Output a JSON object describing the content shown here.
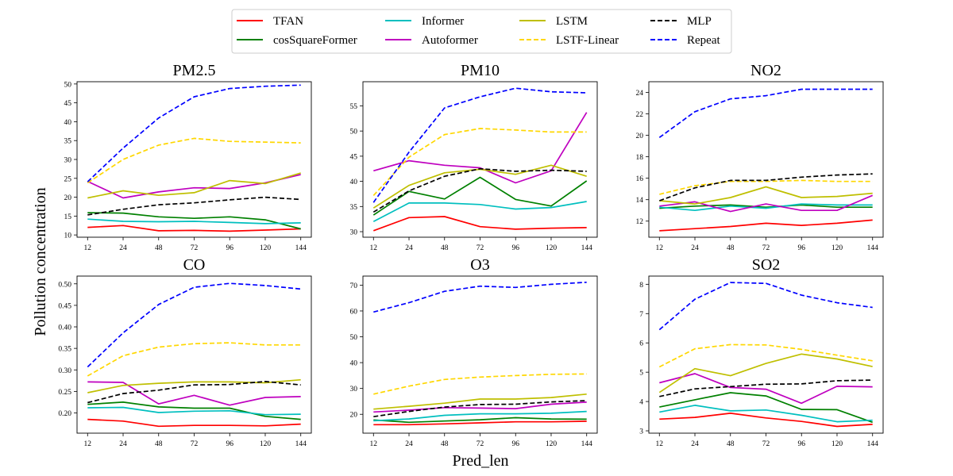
{
  "figure": {
    "ylabel": "Pollution concentration",
    "xlabel": "Pred_len"
  },
  "legend": [
    {
      "name": "TFAN",
      "color": "#ff0000",
      "dashed": false
    },
    {
      "name": "cosSquareFormer",
      "color": "#008000",
      "dashed": false
    },
    {
      "name": "Informer",
      "color": "#00bfbf",
      "dashed": false
    },
    {
      "name": "Autoformer",
      "color": "#bf00bf",
      "dashed": false
    },
    {
      "name": "LSTM",
      "color": "#bfbf00",
      "dashed": false
    },
    {
      "name": "LSTF-Linear",
      "color": "#ffd700",
      "dashed": true
    },
    {
      "name": "MLP",
      "color": "#000000",
      "dashed": true
    },
    {
      "name": "Repeat",
      "color": "#0000ff",
      "dashed": true
    }
  ],
  "chart_data": [
    {
      "type": "line",
      "title": "PM2.5",
      "categories": [
        "12",
        "24",
        "48",
        "72",
        "96",
        "120",
        "144"
      ],
      "yticks": [
        10,
        15,
        20,
        25,
        30,
        35,
        40,
        45,
        50
      ],
      "ylim": [
        9.4,
        50.6
      ],
      "series": [
        {
          "name": "TFAN",
          "values": [
            12.0,
            12.5,
            11.1,
            11.2,
            11.0,
            11.3,
            11.6
          ]
        },
        {
          "name": "cosSquareFormer",
          "values": [
            15.9,
            15.8,
            14.8,
            14.4,
            14.8,
            14.0,
            11.6
          ]
        },
        {
          "name": "Informer",
          "values": [
            14.2,
            13.6,
            13.5,
            13.6,
            13.3,
            13.0,
            13.2
          ]
        },
        {
          "name": "Autoformer",
          "values": [
            24.2,
            19.8,
            21.4,
            22.5,
            22.3,
            23.8,
            26.0
          ]
        },
        {
          "name": "LSTM",
          "values": [
            19.8,
            21.7,
            20.5,
            21.2,
            24.4,
            23.6,
            26.4
          ]
        },
        {
          "name": "LSTF-Linear",
          "values": [
            23.8,
            30.0,
            33.8,
            35.6,
            34.8,
            34.6,
            34.4
          ]
        },
        {
          "name": "MLP",
          "values": [
            15.3,
            16.8,
            18.0,
            18.5,
            19.3,
            20.0,
            19.4
          ]
        },
        {
          "name": "Repeat",
          "values": [
            24.1,
            33.0,
            41.0,
            46.6,
            48.8,
            49.4,
            49.7
          ]
        }
      ]
    },
    {
      "type": "line",
      "title": "PM10",
      "categories": [
        "12",
        "24",
        "48",
        "72",
        "96",
        "120",
        "144"
      ],
      "yticks": [
        30,
        35,
        40,
        45,
        50,
        55
      ],
      "ylim": [
        28.9,
        59.8
      ],
      "series": [
        {
          "name": "TFAN",
          "values": [
            30.2,
            32.8,
            33.0,
            31.0,
            30.5,
            30.7,
            30.8
          ]
        },
        {
          "name": "cosSquareFormer",
          "values": [
            33.3,
            38.0,
            36.5,
            40.8,
            36.4,
            35.1,
            40.1
          ]
        },
        {
          "name": "Informer",
          "values": [
            32.0,
            35.7,
            35.7,
            35.4,
            34.5,
            34.8,
            36.0
          ]
        },
        {
          "name": "Autoformer",
          "values": [
            42.1,
            44.1,
            43.2,
            42.7,
            39.7,
            42.1,
            53.7
          ]
        },
        {
          "name": "LSTM",
          "values": [
            34.7,
            39.2,
            41.7,
            42.4,
            41.4,
            43.2,
            41.0
          ]
        },
        {
          "name": "LSTF-Linear",
          "values": [
            37.2,
            44.8,
            49.3,
            50.5,
            50.2,
            49.8,
            49.8
          ]
        },
        {
          "name": "MLP",
          "values": [
            33.9,
            38.1,
            41.0,
            42.5,
            42.0,
            42.2,
            42.0
          ]
        },
        {
          "name": "Repeat",
          "values": [
            35.8,
            45.8,
            54.6,
            56.8,
            58.5,
            57.8,
            57.6
          ]
        }
      ]
    },
    {
      "type": "line",
      "title": "NO2",
      "categories": [
        "12",
        "24",
        "48",
        "72",
        "96",
        "120",
        "144"
      ],
      "yticks": [
        12,
        14,
        16,
        18,
        20,
        22,
        24
      ],
      "ylim": [
        10.5,
        25.0
      ],
      "series": [
        {
          "name": "TFAN",
          "values": [
            11.1,
            11.3,
            11.5,
            11.8,
            11.6,
            11.8,
            12.1
          ]
        },
        {
          "name": "cosSquareFormer",
          "values": [
            13.2,
            13.4,
            13.5,
            13.3,
            13.5,
            13.3,
            13.3
          ]
        },
        {
          "name": "Informer",
          "values": [
            13.3,
            13.0,
            13.4,
            13.2,
            13.6,
            13.5,
            13.5
          ]
        },
        {
          "name": "Autoformer",
          "values": [
            13.4,
            13.8,
            12.9,
            13.6,
            13.0,
            13.0,
            14.4
          ]
        },
        {
          "name": "LSTM",
          "values": [
            13.9,
            13.6,
            14.2,
            15.2,
            14.2,
            14.3,
            14.6
          ]
        },
        {
          "name": "LSTF-Linear",
          "values": [
            14.5,
            15.3,
            15.7,
            15.7,
            15.8,
            15.7,
            15.7
          ]
        },
        {
          "name": "MLP",
          "values": [
            13.9,
            15.1,
            15.8,
            15.8,
            16.1,
            16.3,
            16.4
          ]
        },
        {
          "name": "Repeat",
          "values": [
            19.8,
            22.2,
            23.4,
            23.7,
            24.3,
            24.3,
            24.3
          ]
        }
      ]
    },
    {
      "type": "line",
      "title": "CO",
      "categories": [
        "12",
        "24",
        "48",
        "72",
        "96",
        "120",
        "144"
      ],
      "yticks": [
        0.2,
        0.25,
        0.3,
        0.35,
        0.4,
        0.45,
        0.5
      ],
      "ytick_labels": [
        "0.20",
        "0.25",
        "0.30",
        "0.35",
        "0.40",
        "0.45",
        "0.50"
      ],
      "ylim": [
        0.153,
        0.518
      ],
      "series": [
        {
          "name": "TFAN",
          "values": [
            0.185,
            0.181,
            0.169,
            0.171,
            0.171,
            0.17,
            0.174
          ]
        },
        {
          "name": "cosSquareFormer",
          "values": [
            0.22,
            0.225,
            0.214,
            0.211,
            0.211,
            0.192,
            0.185
          ]
        },
        {
          "name": "Informer",
          "values": [
            0.212,
            0.213,
            0.201,
            0.204,
            0.205,
            0.196,
            0.197
          ]
        },
        {
          "name": "Autoformer",
          "values": [
            0.272,
            0.271,
            0.221,
            0.241,
            0.218,
            0.236,
            0.238
          ]
        },
        {
          "name": "LSTM",
          "values": [
            0.247,
            0.264,
            0.269,
            0.272,
            0.272,
            0.27,
            0.277
          ]
        },
        {
          "name": "LSTF-Linear",
          "values": [
            0.286,
            0.333,
            0.353,
            0.361,
            0.363,
            0.358,
            0.358
          ]
        },
        {
          "name": "MLP",
          "values": [
            0.224,
            0.245,
            0.253,
            0.265,
            0.266,
            0.273,
            0.265
          ]
        },
        {
          "name": "Repeat",
          "values": [
            0.307,
            0.386,
            0.452,
            0.492,
            0.501,
            0.496,
            0.488
          ]
        }
      ]
    },
    {
      "type": "line",
      "title": "O3",
      "categories": [
        "12",
        "24",
        "48",
        "72",
        "96",
        "120",
        "144"
      ],
      "yticks": [
        20,
        30,
        40,
        50,
        60,
        70
      ],
      "ylim": [
        12.7,
        73.5
      ],
      "series": [
        {
          "name": "TFAN",
          "values": [
            16.0,
            16.0,
            16.3,
            16.7,
            17.1,
            17.1,
            17.3
          ]
        },
        {
          "name": "cosSquareFormer",
          "values": [
            17.8,
            16.9,
            17.4,
            17.9,
            18.7,
            18.2,
            18.1
          ]
        },
        {
          "name": "Informer",
          "values": [
            17.5,
            18.2,
            19.6,
            20.2,
            20.2,
            20.4,
            21.1
          ]
        },
        {
          "name": "Autoformer",
          "values": [
            20.9,
            21.6,
            22.6,
            22.4,
            22.2,
            23.9,
            24.7
          ]
        },
        {
          "name": "LSTM",
          "values": [
            22.0,
            23.1,
            24.3,
            25.9,
            25.9,
            26.5,
            27.8
          ]
        },
        {
          "name": "LSTF-Linear",
          "values": [
            27.8,
            30.9,
            33.5,
            34.4,
            35.0,
            35.5,
            35.6
          ]
        },
        {
          "name": "MLP",
          "values": [
            19.1,
            21.1,
            22.8,
            23.8,
            23.9,
            24.8,
            25.3
          ]
        },
        {
          "name": "Repeat",
          "values": [
            59.6,
            63.2,
            67.6,
            69.6,
            69.1,
            70.3,
            71.1
          ]
        }
      ]
    },
    {
      "type": "line",
      "title": "SO2",
      "categories": [
        "12",
        "24",
        "48",
        "72",
        "96",
        "120",
        "144"
      ],
      "yticks": [
        3,
        4,
        5,
        6,
        7,
        8
      ],
      "ylim": [
        2.92,
        8.28
      ],
      "series": [
        {
          "name": "TFAN",
          "values": [
            3.4,
            3.46,
            3.6,
            3.44,
            3.32,
            3.15,
            3.22
          ]
        },
        {
          "name": "cosSquareFormer",
          "values": [
            3.81,
            4.06,
            4.3,
            4.19,
            3.73,
            3.72,
            3.29
          ]
        },
        {
          "name": "Informer",
          "values": [
            3.64,
            3.87,
            3.68,
            3.71,
            3.53,
            3.31,
            3.36
          ]
        },
        {
          "name": "Autoformer",
          "values": [
            4.64,
            4.95,
            4.48,
            4.42,
            3.94,
            4.52,
            4.5
          ]
        },
        {
          "name": "LSTM",
          "values": [
            4.31,
            5.12,
            4.88,
            5.3,
            5.62,
            5.45,
            5.19
          ]
        },
        {
          "name": "LSTF-Linear",
          "values": [
            5.18,
            5.8,
            5.94,
            5.93,
            5.78,
            5.58,
            5.39
          ]
        },
        {
          "name": "MLP",
          "values": [
            4.17,
            4.43,
            4.51,
            4.59,
            4.6,
            4.71,
            4.73
          ]
        },
        {
          "name": "Repeat",
          "values": [
            6.45,
            7.49,
            8.06,
            8.03,
            7.63,
            7.37,
            7.21
          ]
        }
      ]
    }
  ]
}
